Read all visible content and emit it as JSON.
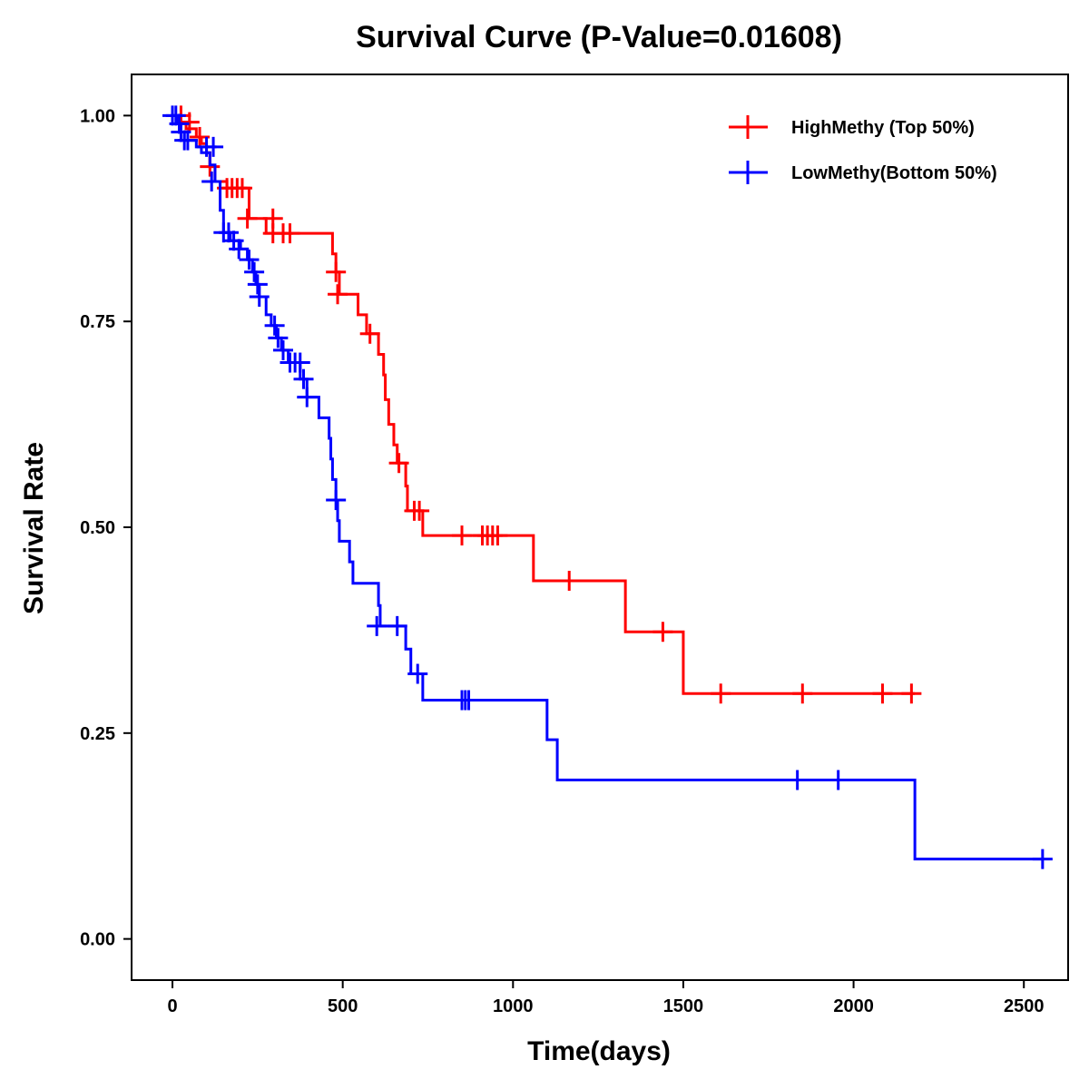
{
  "chart_data": {
    "type": "line",
    "subtype": "kaplan-meier-survival",
    "title": "Survival Curve (P-Value=0.01608)",
    "xlabel": "Time(days)",
    "ylabel": "Survival Rate",
    "xlim": [
      -120,
      2630
    ],
    "ylim": [
      -0.05,
      1.05
    ],
    "xticks": [
      0,
      500,
      1000,
      1500,
      2000,
      2500
    ],
    "xtick_labels": [
      "0",
      "500",
      "1000",
      "1500",
      "2000",
      "2500"
    ],
    "yticks": [
      0,
      0.25,
      0.5,
      0.75,
      1.0
    ],
    "ytick_labels": [
      "0.00",
      "0.25",
      "0.50",
      "0.75",
      "1.00"
    ],
    "grid": false,
    "legend_position": "top-right",
    "series": [
      {
        "name": "HighMethy (Top 50%)",
        "color": "#ff0000",
        "steps": [
          [
            0,
            1.0
          ],
          [
            15,
            0.992
          ],
          [
            40,
            0.984
          ],
          [
            70,
            0.974
          ],
          [
            85,
            0.966
          ],
          [
            100,
            0.955
          ],
          [
            110,
            0.938
          ],
          [
            125,
            0.92
          ],
          [
            160,
            0.912
          ],
          [
            225,
            0.875
          ],
          [
            275,
            0.857
          ],
          [
            470,
            0.832
          ],
          [
            480,
            0.81
          ],
          [
            490,
            0.783
          ],
          [
            545,
            0.758
          ],
          [
            570,
            0.735
          ],
          [
            605,
            0.71
          ],
          [
            620,
            0.685
          ],
          [
            625,
            0.655
          ],
          [
            635,
            0.625
          ],
          [
            650,
            0.6
          ],
          [
            660,
            0.578
          ],
          [
            685,
            0.55
          ],
          [
            690,
            0.52
          ],
          [
            735,
            0.49
          ],
          [
            1060,
            0.435
          ],
          [
            1330,
            0.373
          ],
          [
            1500,
            0.298
          ],
          [
            2180,
            0.298
          ]
        ],
        "censored": [
          [
            25,
            1.0
          ],
          [
            50,
            0.992
          ],
          [
            80,
            0.974
          ],
          [
            110,
            0.938
          ],
          [
            160,
            0.912
          ],
          [
            175,
            0.912
          ],
          [
            190,
            0.912
          ],
          [
            205,
            0.912
          ],
          [
            220,
            0.875
          ],
          [
            295,
            0.875
          ],
          [
            295,
            0.857
          ],
          [
            325,
            0.857
          ],
          [
            345,
            0.857
          ],
          [
            480,
            0.81
          ],
          [
            485,
            0.783
          ],
          [
            580,
            0.735
          ],
          [
            665,
            0.578
          ],
          [
            710,
            0.52
          ],
          [
            725,
            0.52
          ],
          [
            850,
            0.49
          ],
          [
            910,
            0.49
          ],
          [
            925,
            0.49
          ],
          [
            940,
            0.49
          ],
          [
            955,
            0.49
          ],
          [
            1165,
            0.435
          ],
          [
            1440,
            0.373
          ],
          [
            1610,
            0.298
          ],
          [
            1850,
            0.298
          ],
          [
            2085,
            0.298
          ],
          [
            2170,
            0.298
          ]
        ]
      },
      {
        "name": "LowMethy(Bottom 50%)",
        "color": "#0000ff",
        "steps": [
          [
            0,
            1.0
          ],
          [
            12,
            0.99
          ],
          [
            22,
            0.98
          ],
          [
            35,
            0.97
          ],
          [
            70,
            0.962
          ],
          [
            85,
            0.955
          ],
          [
            110,
            0.94
          ],
          [
            125,
            0.92
          ],
          [
            140,
            0.885
          ],
          [
            150,
            0.858
          ],
          [
            170,
            0.848
          ],
          [
            200,
            0.838
          ],
          [
            220,
            0.825
          ],
          [
            235,
            0.81
          ],
          [
            245,
            0.795
          ],
          [
            255,
            0.78
          ],
          [
            275,
            0.758
          ],
          [
            290,
            0.745
          ],
          [
            305,
            0.73
          ],
          [
            320,
            0.715
          ],
          [
            340,
            0.7
          ],
          [
            375,
            0.68
          ],
          [
            395,
            0.658
          ],
          [
            430,
            0.633
          ],
          [
            460,
            0.608
          ],
          [
            465,
            0.583
          ],
          [
            470,
            0.558
          ],
          [
            480,
            0.533
          ],
          [
            485,
            0.508
          ],
          [
            490,
            0.483
          ],
          [
            520,
            0.458
          ],
          [
            530,
            0.432
          ],
          [
            605,
            0.405
          ],
          [
            610,
            0.38
          ],
          [
            685,
            0.352
          ],
          [
            700,
            0.322
          ],
          [
            735,
            0.29
          ],
          [
            1100,
            0.242
          ],
          [
            1130,
            0.193
          ],
          [
            2180,
            0.097
          ],
          [
            2555,
            0.097
          ]
        ],
        "censored": [
          [
            0,
            1.0
          ],
          [
            10,
            1.0
          ],
          [
            20,
            0.99
          ],
          [
            25,
            0.98
          ],
          [
            35,
            0.97
          ],
          [
            45,
            0.97
          ],
          [
            100,
            0.962
          ],
          [
            120,
            0.962
          ],
          [
            115,
            0.92
          ],
          [
            150,
            0.858
          ],
          [
            165,
            0.858
          ],
          [
            180,
            0.848
          ],
          [
            195,
            0.838
          ],
          [
            225,
            0.825
          ],
          [
            240,
            0.81
          ],
          [
            250,
            0.795
          ],
          [
            255,
            0.78
          ],
          [
            300,
            0.745
          ],
          [
            310,
            0.73
          ],
          [
            325,
            0.715
          ],
          [
            345,
            0.7
          ],
          [
            360,
            0.7
          ],
          [
            375,
            0.7
          ],
          [
            385,
            0.68
          ],
          [
            395,
            0.658
          ],
          [
            480,
            0.533
          ],
          [
            600,
            0.38
          ],
          [
            660,
            0.38
          ],
          [
            720,
            0.322
          ],
          [
            850,
            0.29
          ],
          [
            860,
            0.29
          ],
          [
            870,
            0.29
          ],
          [
            1835,
            0.193
          ],
          [
            1955,
            0.193
          ],
          [
            2555,
            0.097
          ]
        ]
      }
    ]
  }
}
